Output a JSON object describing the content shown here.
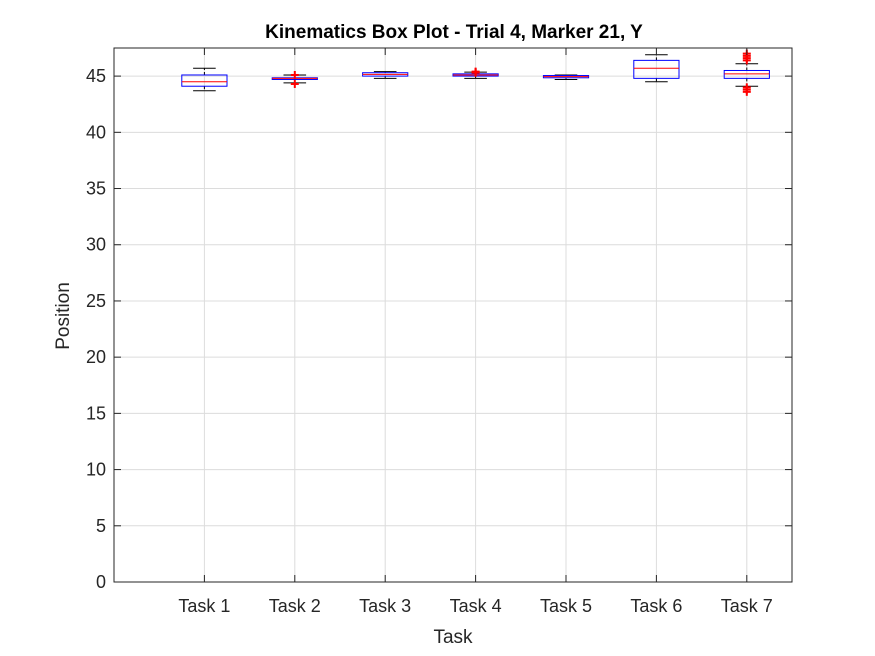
{
  "chart_data": {
    "type": "box",
    "title": "Kinematics Box Plot - Trial 4, Marker 21, Y",
    "xlabel": "Task",
    "ylabel": "Position",
    "categories": [
      "Task 1",
      "Task 2",
      "Task 3",
      "Task 4",
      "Task 5",
      "Task 6",
      "Task 7"
    ],
    "ylim": [
      0,
      47.5
    ],
    "yticks": [
      0,
      5,
      10,
      15,
      20,
      25,
      30,
      35,
      40,
      45
    ],
    "xlim": [
      0,
      7.5
    ],
    "grid": true,
    "boxes": [
      {
        "min": 43.7,
        "q1": 44.1,
        "median": 44.5,
        "q3": 45.1,
        "max": 45.7,
        "outliers": []
      },
      {
        "min": 44.4,
        "q1": 44.7,
        "median": 44.8,
        "q3": 44.85,
        "max": 45.1,
        "outliers": [
          44.3,
          45.1
        ]
      },
      {
        "min": 44.8,
        "q1": 45.0,
        "median": 45.15,
        "q3": 45.3,
        "max": 45.4,
        "outliers": []
      },
      {
        "min": 44.8,
        "q1": 45.0,
        "median": 45.1,
        "q3": 45.2,
        "max": 45.35,
        "outliers": [
          45.3,
          45.35,
          45.4
        ]
      },
      {
        "min": 44.7,
        "q1": 44.85,
        "median": 44.95,
        "q3": 45.05,
        "max": 45.1,
        "outliers": []
      },
      {
        "min": 44.5,
        "q1": 44.8,
        "median": 45.7,
        "q3": 46.4,
        "max": 46.9,
        "outliers": []
      },
      {
        "min": 44.1,
        "q1": 44.8,
        "median": 45.2,
        "q3": 45.5,
        "max": 46.1,
        "outliers": [
          43.6,
          43.8,
          44.0,
          46.4,
          46.6,
          46.8,
          47.0
        ]
      }
    ],
    "colors": {
      "box": "#0000ff",
      "median": "#ff0000",
      "whisker": "#000000",
      "outlier": "#ff0000",
      "grid": "#dcdcdc",
      "axes": "#262626"
    }
  }
}
